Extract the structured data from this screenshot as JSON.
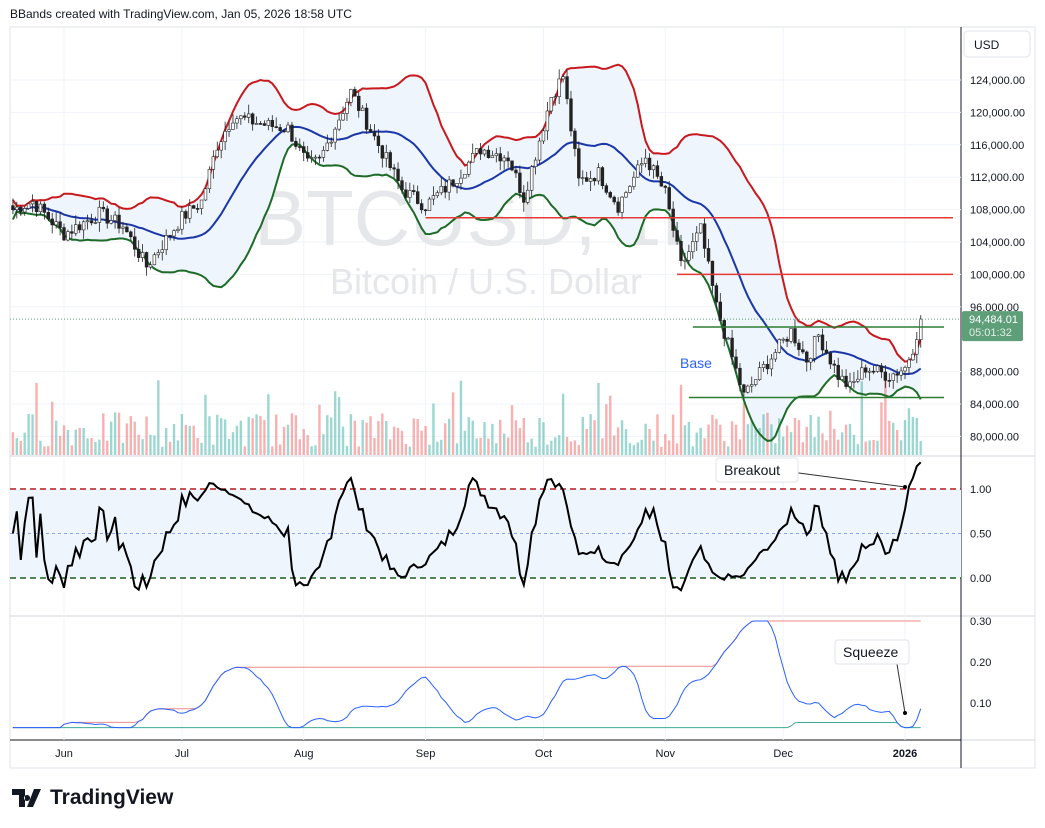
{
  "header": "BBands created with TradingView.com, Jan 05, 2026 18:58 UTC",
  "logo": "TradingView",
  "chart_data": {
    "type": "candlestick",
    "symbol_watermark": "BTCUSD, 1D",
    "symbol_description": "Bitcoin / U.S. Dollar",
    "currency": "USD",
    "last_price": "94,484.01",
    "countdown": "05:01:32",
    "price_ticks": [
      "124,000.00",
      "120,000.00",
      "116,000.00",
      "112,000.00",
      "108,000.00",
      "104,000.00",
      "100,000.00",
      "96,000.00",
      "88,000.00",
      "84,000.00",
      "80,000.00"
    ],
    "price_tick_values": [
      124000,
      120000,
      116000,
      112000,
      108000,
      104000,
      100000,
      96000,
      88000,
      84000,
      80000
    ],
    "time_ticks": [
      "Jun",
      "Jul",
      "Aug",
      "Sep",
      "Oct",
      "Nov",
      "Dec",
      "2026"
    ],
    "time_tick_dates": [
      "2025-06-01",
      "2025-07-01",
      "2025-08-01",
      "2025-09-01",
      "2025-10-01",
      "2025-11-01",
      "2025-12-01",
      "2026-01-01"
    ],
    "closes": [
      [
        "2025-05-19",
        108000
      ],
      [
        "2025-05-24",
        109000
      ],
      [
        "2025-06-01",
        105000
      ],
      [
        "2025-06-10",
        107500
      ],
      [
        "2025-06-16",
        106000
      ],
      [
        "2025-06-22",
        101000
      ],
      [
        "2025-07-01",
        107000
      ],
      [
        "2025-07-06",
        109000
      ],
      [
        "2025-07-10",
        116000
      ],
      [
        "2025-07-14",
        119500
      ],
      [
        "2025-07-22",
        118500
      ],
      [
        "2025-07-28",
        118000
      ],
      [
        "2025-08-02",
        113500
      ],
      [
        "2025-08-05",
        114000
      ],
      [
        "2025-08-13",
        122500
      ],
      [
        "2025-08-20",
        116000
      ],
      [
        "2025-08-26",
        110500
      ],
      [
        "2025-09-01",
        108500
      ],
      [
        "2025-09-08",
        111500
      ],
      [
        "2025-09-15",
        115500
      ],
      [
        "2025-09-22",
        114500
      ],
      [
        "2025-09-26",
        109500
      ],
      [
        "2025-10-03",
        122000
      ],
      [
        "2025-10-06",
        124500
      ],
      [
        "2025-10-10",
        111500
      ],
      [
        "2025-10-15",
        112500
      ],
      [
        "2025-10-20",
        108500
      ],
      [
        "2025-10-27",
        114500
      ],
      [
        "2025-11-01",
        110000
      ],
      [
        "2025-11-05",
        101000
      ],
      [
        "2025-11-10",
        105500
      ],
      [
        "2025-11-14",
        96000
      ],
      [
        "2025-11-21",
        85000
      ],
      [
        "2025-11-26",
        88500
      ],
      [
        "2025-12-03",
        93000
      ],
      [
        "2025-12-07",
        89500
      ],
      [
        "2025-12-10",
        92500
      ],
      [
        "2025-12-15",
        87500
      ],
      [
        "2025-12-18",
        86000
      ],
      [
        "2025-12-22",
        88500
      ],
      [
        "2025-12-28",
        87500
      ],
      [
        "2026-01-01",
        88500
      ],
      [
        "2026-01-03",
        91000
      ],
      [
        "2026-01-05",
        94484
      ]
    ],
    "indicators": {
      "bbands": {
        "length": 20,
        "mult": 2,
        "colors": {
          "upper": "#c8191e",
          "basis": "#1a36a8",
          "lower": "#1e6b27",
          "fill": "#eef5fd"
        }
      },
      "percent_b": {
        "ticks": [
          "1.00",
          "0.50",
          "0.00"
        ],
        "tick_values": [
          1,
          0.5,
          0
        ]
      },
      "bandwidth": {
        "ticks": [
          "0.30",
          "0.20",
          "0.10"
        ],
        "tick_values": [
          0.3,
          0.2,
          0.1
        ],
        "colors": {
          "line": "#2962ff",
          "highest_expansion": "#f08a8a",
          "lowest_contraction": "#3fa996"
        }
      }
    },
    "levels": [
      {
        "price": 107000,
        "color": "#e53935",
        "from": "2025-09-01"
      },
      {
        "price": 100000,
        "color": "#e53935",
        "from": "2025-11-04"
      },
      {
        "price": 93500,
        "color": "#2e7d32",
        "from": "2025-11-08"
      },
      {
        "price": 84800,
        "color": "#2e7d32",
        "from": "2025-11-07"
      }
    ],
    "annotations": {
      "base": "Base",
      "breakout": "Breakout",
      "squeeze": "Squeeze"
    },
    "colors": {
      "up": "#26a69a",
      "down": "#ef5350",
      "last_price_bg": "#5e9e78"
    }
  }
}
